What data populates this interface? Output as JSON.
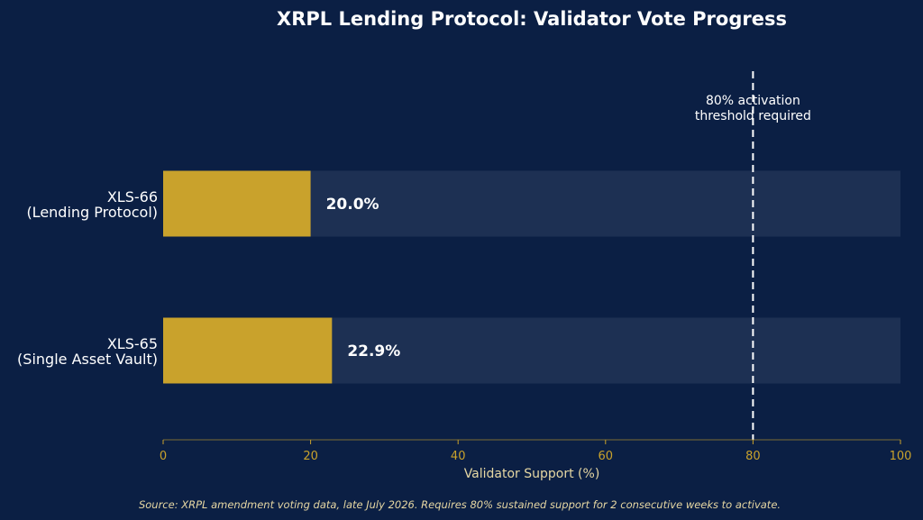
{
  "chart_data": {
    "type": "bar",
    "orientation": "horizontal",
    "title": "XRPL Lending Protocol: Validator Vote Progress",
    "categories": [
      [
        "XLS-66",
        "(Lending Protocol)"
      ],
      [
        "XLS-65",
        "(Single Asset Vault)"
      ]
    ],
    "values": [
      20.0,
      22.9
    ],
    "value_labels": [
      "20.0%",
      "22.9%"
    ],
    "xlabel": "Validator Support (%)",
    "ylabel": "",
    "xlim": [
      0,
      100
    ],
    "x_ticks": [
      0,
      20,
      40,
      60,
      80,
      100
    ],
    "track_max": 100,
    "threshold": {
      "value": 80,
      "label_lines": [
        "80% activation",
        "threshold required"
      ]
    },
    "grid": false,
    "legend": "none"
  },
  "footer": {
    "source": "Source: XRPL amendment voting data, late July 2026. Requires 80% sustained support for 2 consecutive weeks to activate."
  },
  "colors": {
    "background": "#0b1f44",
    "track": "#1d3053",
    "bar": "#c9a22c",
    "axis": "#c9a22c",
    "axis_title": "#e6d7a3",
    "threshold_line": "#ffffff",
    "text": "#ffffff",
    "source_text": "#e6d7a3"
  }
}
